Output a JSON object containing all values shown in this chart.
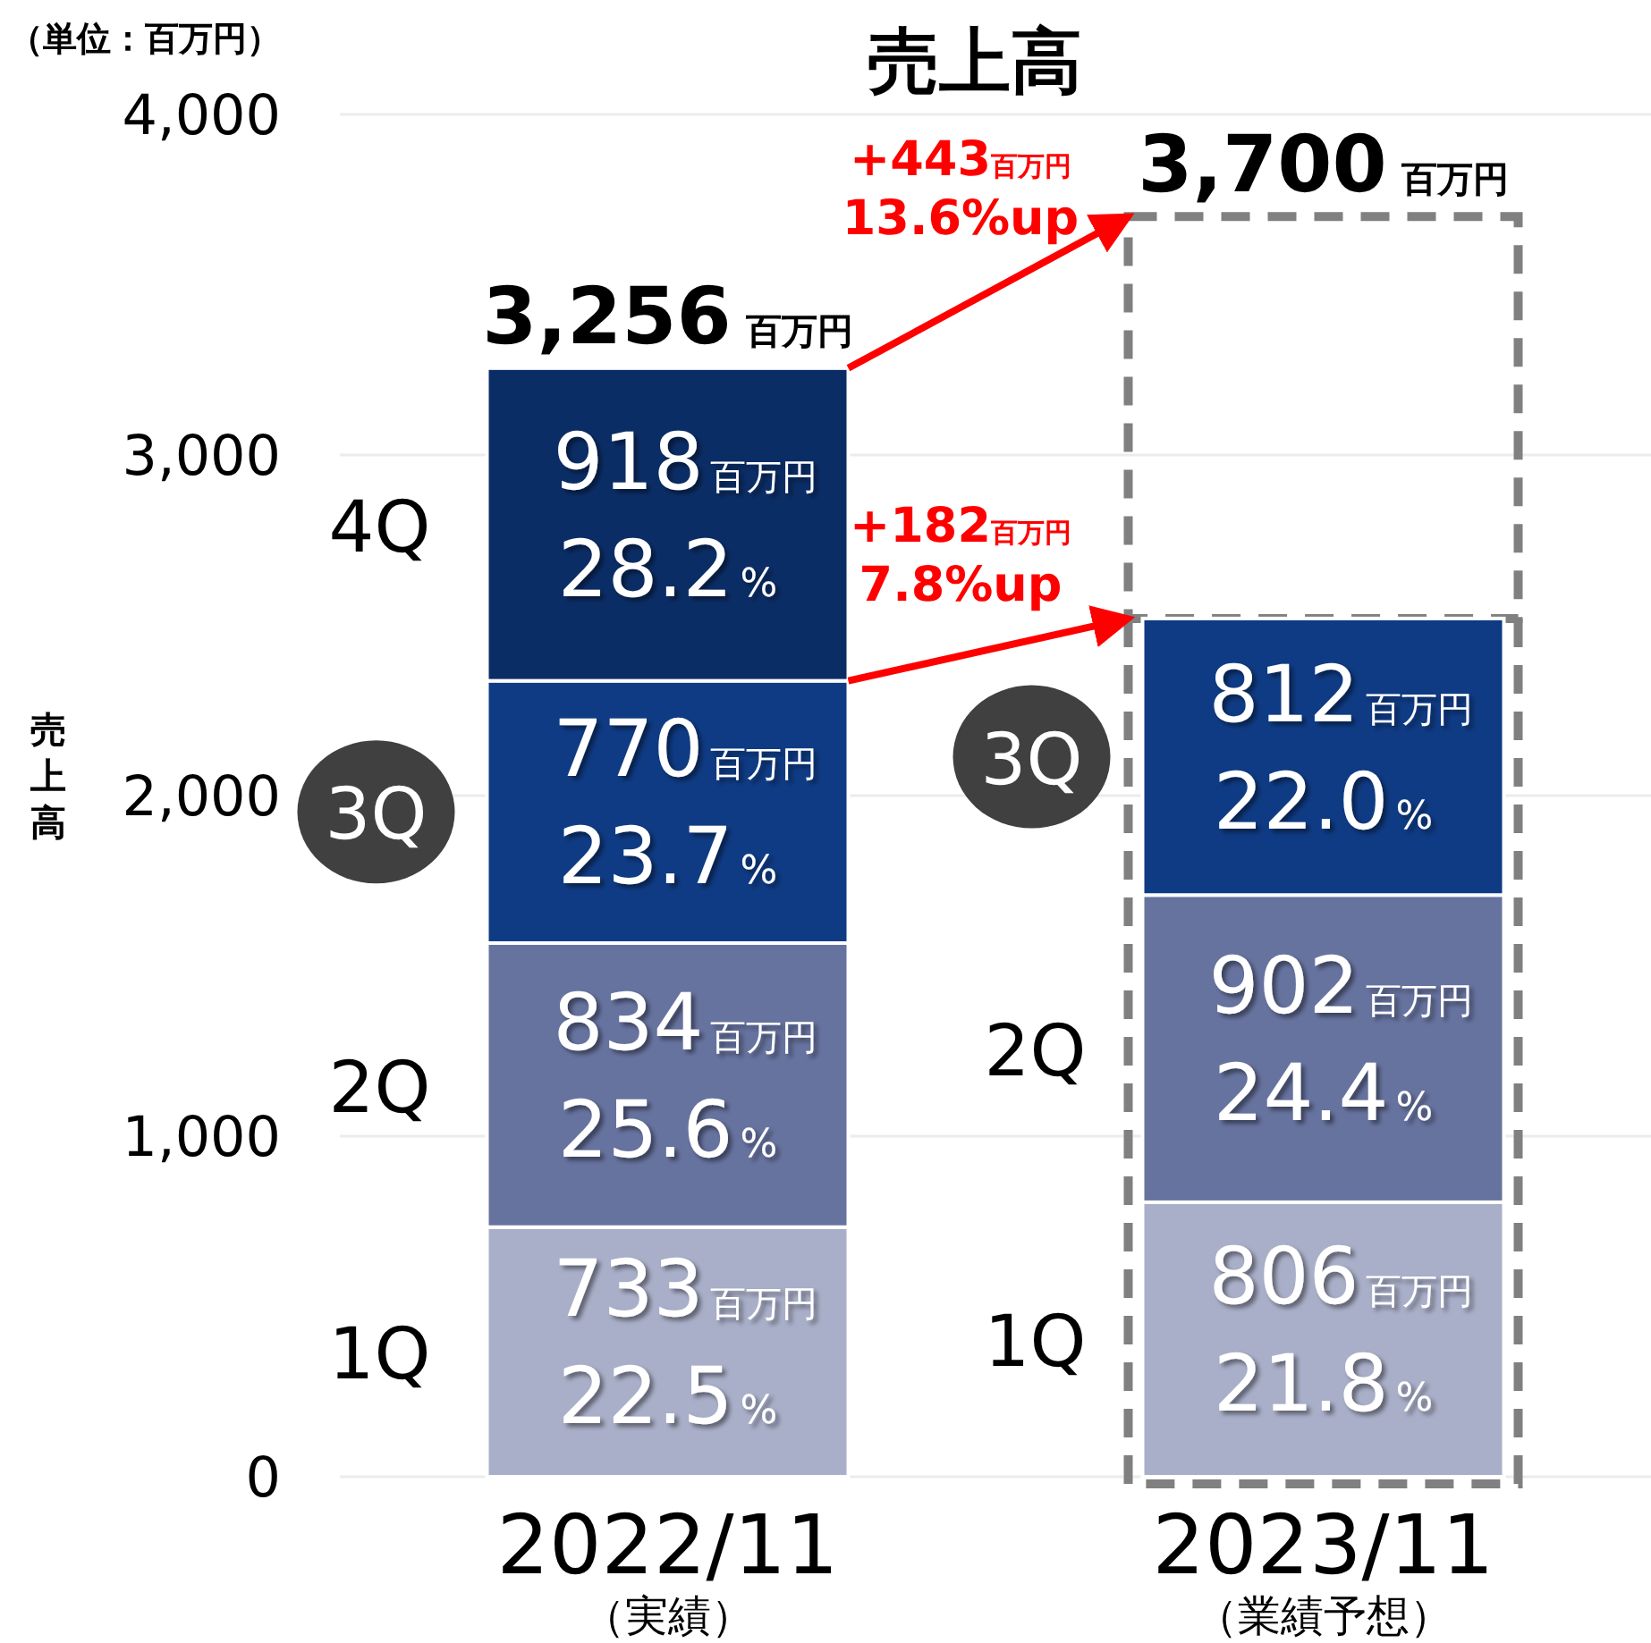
{
  "chart_data": {
    "type": "bar",
    "stacked": true,
    "title": "売上高",
    "ylabel": "売上高",
    "categories": [
      "2022/11\n（実績）",
      "2023/11\n（業績予想）"
    ],
    "series": [
      {
        "name": "1Q",
        "color": "#a9afc8",
        "values": [
          733,
          806
        ],
        "value_labels": [
          "733百万円\n22.5%",
          "806百万円\n21.8%"
        ]
      },
      {
        "name": "2Q",
        "color": "#67739f",
        "values": [
          834,
          902
        ],
        "value_labels": [
          "834百万円\n25.6%",
          "902百万円\n24.4%"
        ]
      },
      {
        "name": "3Q",
        "color": "#0f3b84",
        "marker": "circle",
        "values": [
          770,
          812
        ],
        "value_labels": [
          "770百万円\n23.7%",
          "812百万円\n22.0%"
        ]
      },
      {
        "name": "4Q",
        "color": "#0b2d66",
        "values": [
          918,
          null
        ],
        "value_labels": [
          "918百万円\n28.2%",
          null
        ]
      },
      {
        "type": "bar",
        "line_style": "dashed",
        "color": "#808080",
        "values": [
          null,
          1180
        ]
      }
    ],
    "totals": [
      "3,256百万円",
      "3,700百万円"
    ],
    "ylim": [
      0,
      4000
    ],
    "yticks": [
      0,
      {
        "value": 1000,
        "label": "1,000"
      },
      {
        "value": 2000,
        "label": "2,000"
      },
      {
        "value": 3000,
        "label": "3,000"
      },
      {
        "value": 4000,
        "label": "4,000"
      }
    ],
    "grid": "y",
    "annotations": [
      "（単位：百万円）",
      "+443百万円\n13.6%up",
      "+182百万円\n7.8%up"
    ]
  }
}
